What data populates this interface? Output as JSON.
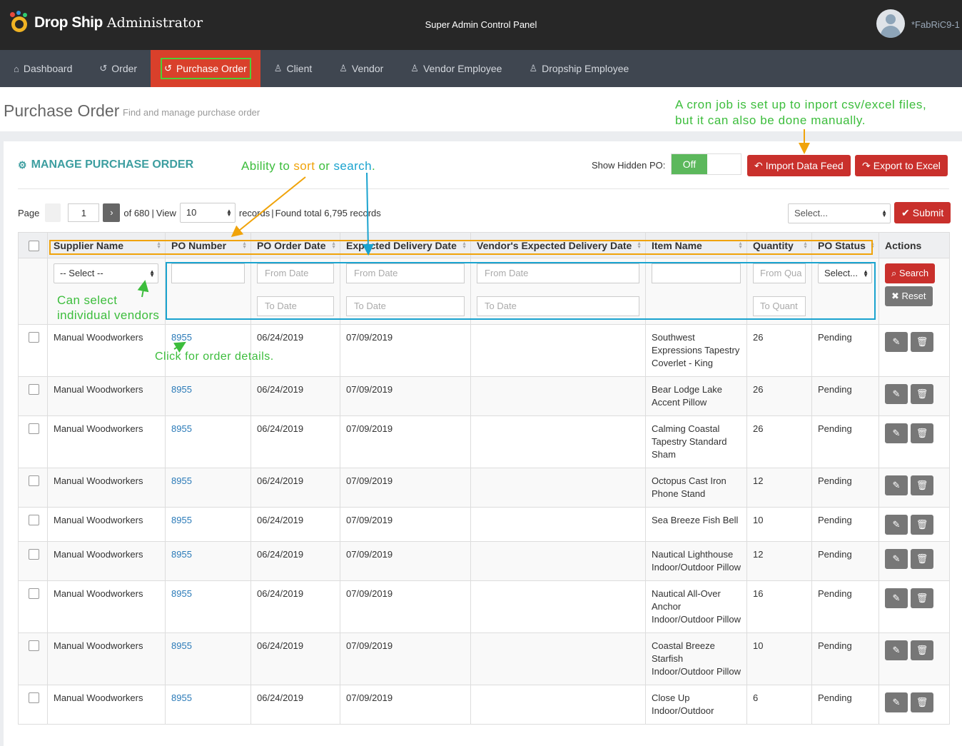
{
  "app": {
    "logo_bold": "Drop Ship",
    "logo_rest": "Administrator",
    "center_title": "Super Admin Control Panel",
    "username": "*FabRiC9-1"
  },
  "nav": [
    {
      "label": "Dashboard",
      "icon": "home-icon"
    },
    {
      "label": "Order",
      "icon": "history-icon"
    },
    {
      "label": "Purchase Order",
      "icon": "history-icon",
      "active": true
    },
    {
      "label": "Client",
      "icon": "user-icon"
    },
    {
      "label": "Vendor",
      "icon": "user-icon"
    },
    {
      "label": "Vendor Employee",
      "icon": "user-icon"
    },
    {
      "label": "Dropship Employee",
      "icon": "user-icon"
    }
  ],
  "page": {
    "title": "Purchase Order",
    "subtitle": "Find and manage purchase order"
  },
  "panel": {
    "title": "MANAGE PURCHASE ORDER",
    "show_hidden_label": "Show Hidden PO:",
    "toggle_off": "Off",
    "import_label": "Import Data Feed",
    "export_label": "Export to Excel"
  },
  "pager": {
    "page_label": "Page",
    "current_page": "1",
    "of_text": "of 680",
    "view_label": "View",
    "per_page": "10",
    "records_text": "records",
    "found_text": "Found total 6,795 records",
    "next_glyph": "›"
  },
  "bulk": {
    "select_placeholder": "Select...",
    "submit_label": "Submit"
  },
  "columns": [
    "Supplier Name",
    "PO Number",
    "PO Order Date",
    "Expected Delivery Date",
    "Vendor's Expected Delivery Date",
    "Item Name",
    "Quantity",
    "PO Status",
    "Actions"
  ],
  "filters": {
    "supplier_select": "-- Select --",
    "from_date": "From Date",
    "to_date": "To Date",
    "qty_from": "From Qua",
    "qty_to": "To Quant",
    "status_select": "Select...",
    "search_label": "Search",
    "reset_label": "Reset"
  },
  "rows": [
    {
      "supplier": "Manual Woodworkers",
      "po": "8955",
      "order_date": "06/24/2019",
      "expected": "07/09/2019",
      "vendor_expected": "",
      "item": "Southwest Expressions Tapestry Coverlet - King",
      "qty": "26",
      "status": "Pending"
    },
    {
      "supplier": "Manual Woodworkers",
      "po": "8955",
      "order_date": "06/24/2019",
      "expected": "07/09/2019",
      "vendor_expected": "",
      "item": "Bear Lodge Lake Accent Pillow",
      "qty": "26",
      "status": "Pending"
    },
    {
      "supplier": "Manual Woodworkers",
      "po": "8955",
      "order_date": "06/24/2019",
      "expected": "07/09/2019",
      "vendor_expected": "",
      "item": "Calming Coastal Tapestry Standard Sham",
      "qty": "26",
      "status": "Pending"
    },
    {
      "supplier": "Manual Woodworkers",
      "po": "8955",
      "order_date": "06/24/2019",
      "expected": "07/09/2019",
      "vendor_expected": "",
      "item": "Octopus Cast Iron Phone Stand",
      "qty": "12",
      "status": "Pending"
    },
    {
      "supplier": "Manual Woodworkers",
      "po": "8955",
      "order_date": "06/24/2019",
      "expected": "07/09/2019",
      "vendor_expected": "",
      "item": "Sea Breeze Fish Bell",
      "qty": "10",
      "status": "Pending"
    },
    {
      "supplier": "Manual Woodworkers",
      "po": "8955",
      "order_date": "06/24/2019",
      "expected": "07/09/2019",
      "vendor_expected": "",
      "item": "Nautical Lighthouse Indoor/Outdoor Pillow",
      "qty": "12",
      "status": "Pending"
    },
    {
      "supplier": "Manual Woodworkers",
      "po": "8955",
      "order_date": "06/24/2019",
      "expected": "07/09/2019",
      "vendor_expected": "",
      "item": "Nautical All-Over Anchor Indoor/Outdoor Pillow",
      "qty": "16",
      "status": "Pending"
    },
    {
      "supplier": "Manual Woodworkers",
      "po": "8955",
      "order_date": "06/24/2019",
      "expected": "07/09/2019",
      "vendor_expected": "",
      "item": "Coastal Breeze Starfish Indoor/Outdoor Pillow",
      "qty": "10",
      "status": "Pending"
    },
    {
      "supplier": "Manual Woodworkers",
      "po": "8955",
      "order_date": "06/24/2019",
      "expected": "07/09/2019",
      "vendor_expected": "",
      "item": "Close Up Indoor/Outdoor",
      "qty": "6",
      "status": "Pending"
    }
  ],
  "annotations": {
    "cron_line1": "A cron job is set up to inport csv/excel files,",
    "cron_line2": "but it can also be done manually.",
    "sort_pre": "Ability to ",
    "sort_word": "sort",
    "sort_mid": " or ",
    "search_word": "search",
    "sort_end": ".",
    "vendors_line1": "Can select",
    "vendors_line2": "individual vendors",
    "click_details": "Click for order details."
  },
  "colors": {
    "accent_red": "#c9302c",
    "nav_active": "#d9402b",
    "teal_title": "#3d9ea0",
    "annotation_green": "#3cbd3c",
    "annotation_orange": "#f0a30a",
    "annotation_cyan": "#1aa3cf"
  }
}
